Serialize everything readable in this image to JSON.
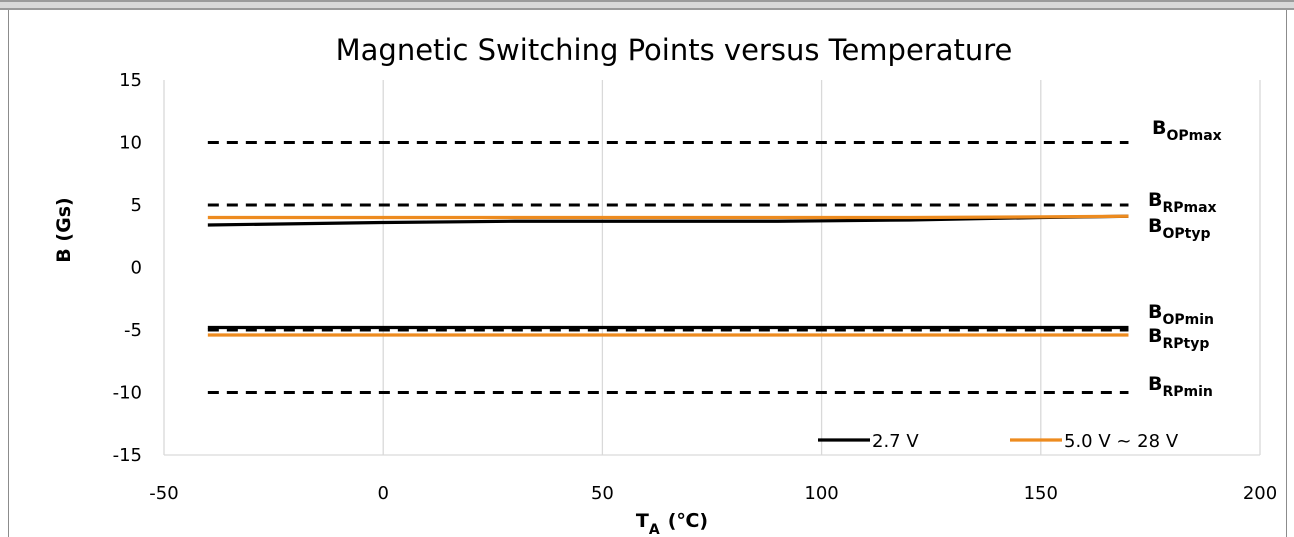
{
  "chart_data": {
    "type": "line",
    "title": "Magnetic Switching Points versus Temperature",
    "xlabel": {
      "main": "T",
      "sub": "A",
      "unit": "(℃)"
    },
    "ylabel": "B (Gs)",
    "xlim": [
      -50,
      200
    ],
    "ylim": [
      -15,
      15
    ],
    "xticks": [
      -50,
      0,
      50,
      100,
      150,
      200
    ],
    "yticks": [
      15,
      10,
      5,
      0,
      -5,
      -10,
      -15
    ],
    "grid": "vertical",
    "x": [
      -40,
      0,
      30,
      60,
      90,
      120,
      150,
      170
    ],
    "series": [
      {
        "name": "2.7 V",
        "color": "#000000",
        "style": "solid",
        "values": [
          3.4,
          3.6,
          3.7,
          3.7,
          3.7,
          3.8,
          4.0,
          4.1
        ]
      },
      {
        "name": "2.7 V",
        "color": "#000000",
        "style": "solid",
        "values": [
          -4.8,
          -4.8,
          -4.8,
          -4.8,
          -4.8,
          -4.8,
          -4.8,
          -4.8
        ]
      },
      {
        "name": "5.0 V ~ 28 V",
        "color": "#ed8b1f",
        "style": "solid",
        "values": [
          4.0,
          4.0,
          4.0,
          4.0,
          4.0,
          4.0,
          4.05,
          4.1
        ]
      },
      {
        "name": "5.0 V ~ 28 V",
        "color": "#ed8b1f",
        "style": "solid",
        "values": [
          -5.4,
          -5.4,
          -5.4,
          -5.4,
          -5.4,
          -5.4,
          -5.4,
          -5.4
        ]
      }
    ],
    "reference_lines": [
      {
        "value": 10,
        "label_main": "B",
        "label_sub": "OPmax"
      },
      {
        "value": 5,
        "label_main": "B",
        "label_sub": "RPmax"
      },
      {
        "value": -5,
        "label_main": "B",
        "label_sub": "OPmin"
      },
      {
        "value": -10,
        "label_main": "B",
        "label_sub": "RPmin"
      }
    ],
    "annotations": [
      {
        "value": 4.0,
        "label_main": "B",
        "label_sub": "OPtyp"
      },
      {
        "value": -5.4,
        "label_main": "B",
        "label_sub": "RPtyp"
      }
    ],
    "legend": {
      "placement": "bottom-right",
      "entries": [
        {
          "label": "2.7 V",
          "color": "#000000"
        },
        {
          "label": "5.0 V ~ 28 V",
          "color": "#ed8b1f"
        }
      ]
    }
  }
}
